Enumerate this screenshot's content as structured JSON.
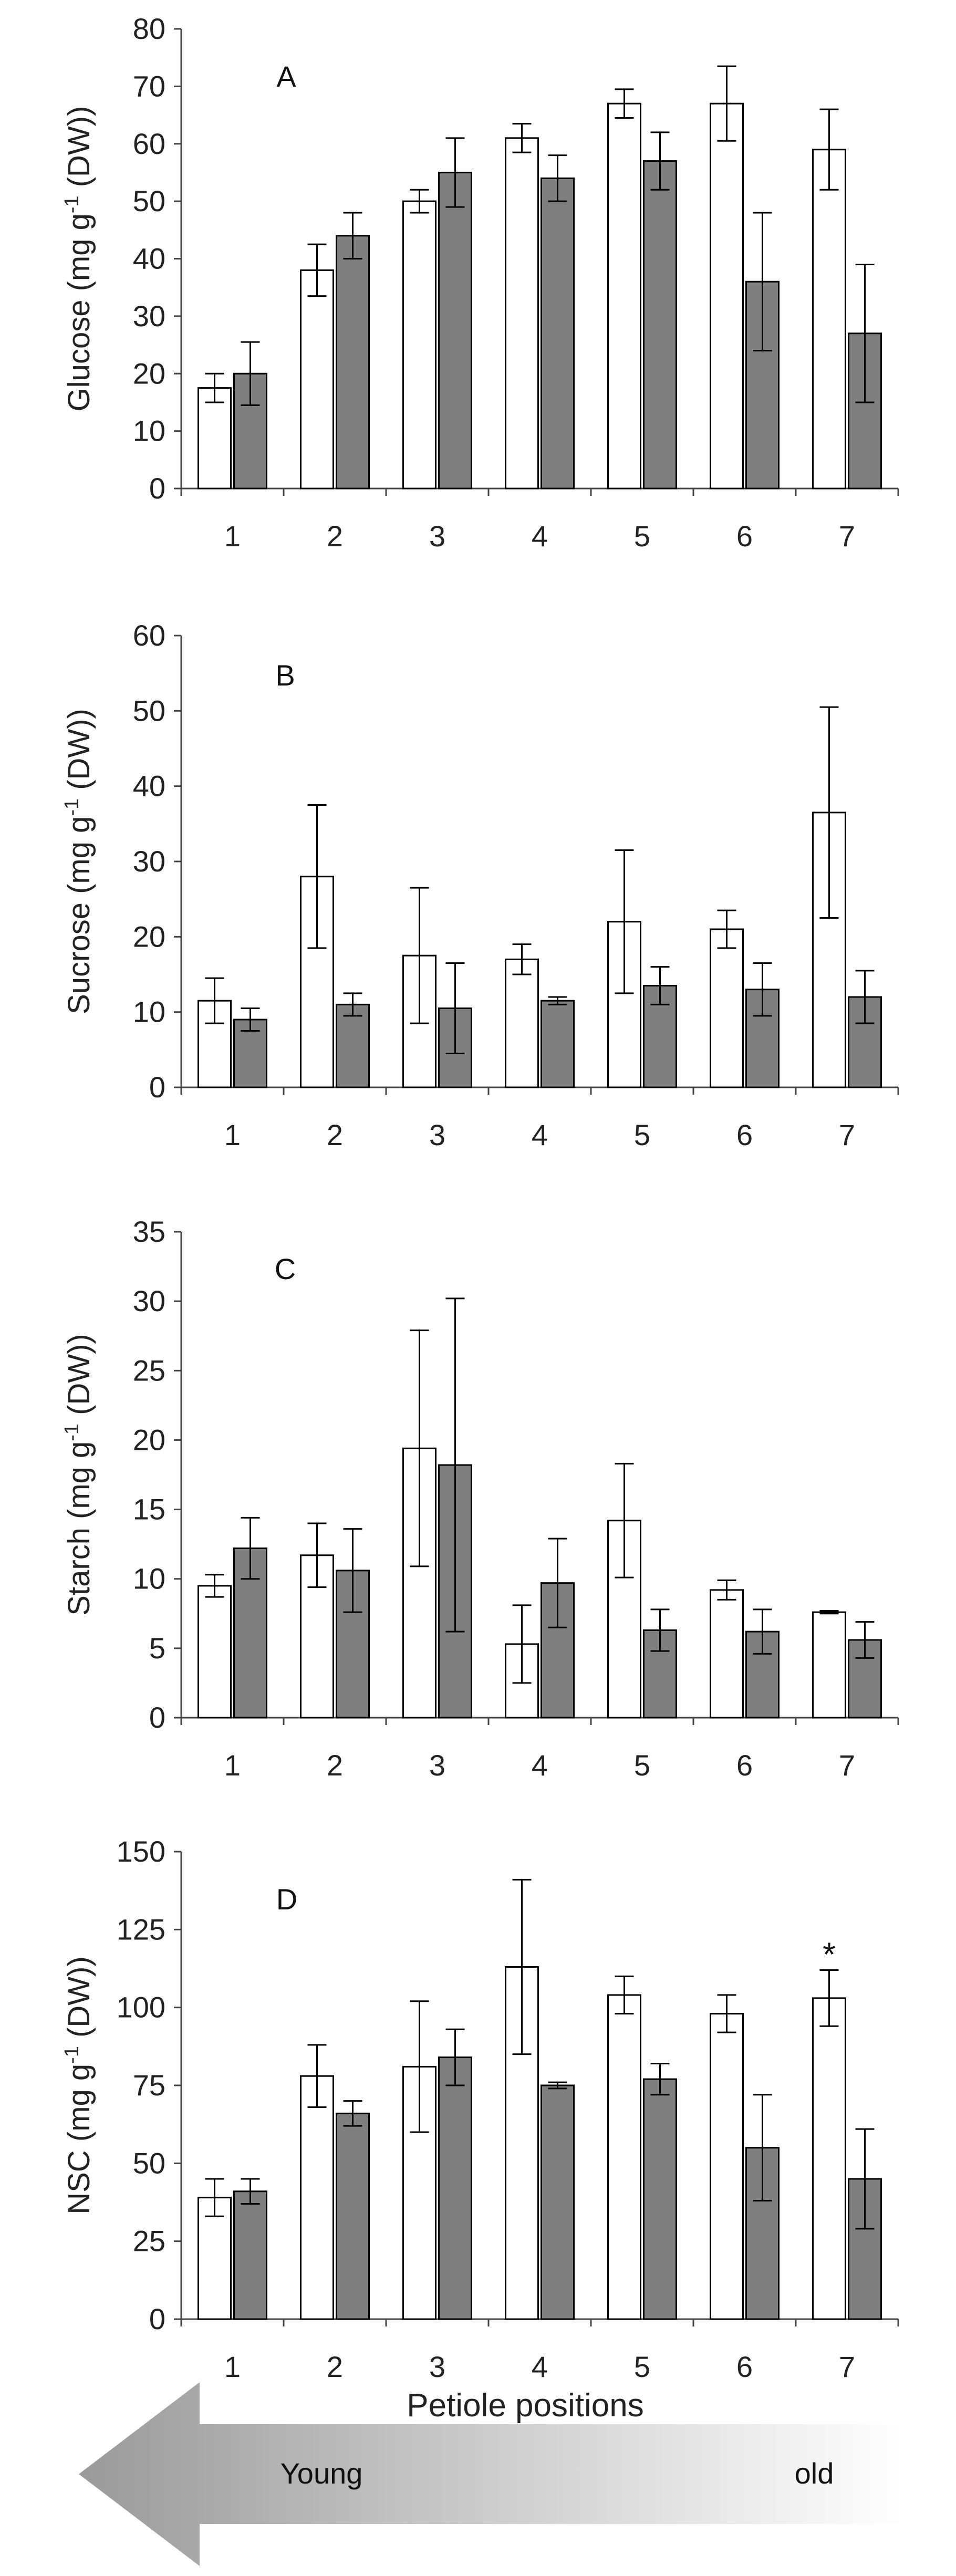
{
  "colors": {
    "series_1_fill": "#ffffff",
    "series_2_fill": "#7f7f7f",
    "stroke": "#000000",
    "axis": "#444444",
    "arrow_start": "#9a9a9a",
    "arrow_end": "#ffffff"
  },
  "chart_data": [
    {
      "type": "bar",
      "panel_label": "A",
      "title": "",
      "xlabel": "",
      "ylabel": "Glucose (mg g-1 (DW))",
      "categories": [
        "1",
        "2",
        "3",
        "4",
        "5",
        "6",
        "7"
      ],
      "ylim": [
        0,
        80
      ],
      "yticks": [
        "0",
        "10",
        "20",
        "30",
        "40",
        "50",
        "60",
        "70",
        "80"
      ],
      "grid": false,
      "series": [
        {
          "name": "series 1 (white bars)",
          "values": [
            17.5,
            38,
            50,
            61,
            67,
            67,
            59
          ],
          "errors": [
            2.5,
            4.5,
            2,
            2.5,
            2.5,
            6.5,
            7
          ]
        },
        {
          "name": "series 2 (grey bars)",
          "values": [
            20,
            44,
            55,
            54,
            57,
            36,
            27
          ],
          "errors": [
            5.5,
            4,
            6,
            4,
            5,
            12,
            12
          ]
        }
      ]
    },
    {
      "type": "bar",
      "panel_label": "B",
      "title": "",
      "xlabel": "",
      "ylabel": "Sucrose (mg g-1 (DW))",
      "categories": [
        "1",
        "2",
        "3",
        "4",
        "5",
        "6",
        "7"
      ],
      "ylim": [
        0,
        60
      ],
      "yticks": [
        "0",
        "10",
        "20",
        "30",
        "40",
        "50",
        "60"
      ],
      "grid": false,
      "series": [
        {
          "name": "series 1 (white bars)",
          "values": [
            11.5,
            28,
            17.5,
            17,
            22,
            21,
            36.5
          ],
          "errors": [
            3,
            9.5,
            9,
            2,
            9.5,
            2.5,
            14
          ]
        },
        {
          "name": "series 2 (grey bars)",
          "values": [
            9,
            11,
            10.5,
            11.5,
            13.5,
            13,
            12
          ],
          "errors": [
            1.5,
            1.5,
            6,
            0.5,
            2.5,
            3.5,
            3.5
          ]
        }
      ]
    },
    {
      "type": "bar",
      "panel_label": "C",
      "title": "",
      "xlabel": "",
      "ylabel": "Starch (mg g-1 (DW))",
      "categories": [
        "1",
        "2",
        "3",
        "4",
        "5",
        "6",
        "7"
      ],
      "ylim": [
        0,
        35
      ],
      "yticks": [
        "0",
        "5",
        "10",
        "15",
        "20",
        "25",
        "30",
        "35"
      ],
      "grid": false,
      "series": [
        {
          "name": "series 1 (white bars)",
          "values": [
            9.5,
            11.7,
            19.4,
            5.3,
            14.2,
            9.2,
            7.6
          ],
          "errors": [
            0.8,
            2.3,
            8.5,
            2.8,
            4.1,
            0.7,
            0.1
          ]
        },
        {
          "name": "series 2 (grey bars)",
          "values": [
            12.2,
            10.6,
            18.2,
            9.7,
            6.3,
            6.2,
            5.6
          ],
          "errors": [
            2.2,
            3,
            12,
            3.2,
            1.5,
            1.6,
            1.3
          ]
        }
      ]
    },
    {
      "type": "bar",
      "panel_label": "D",
      "title": "",
      "xlabel": "Petiole positions",
      "ylabel": "NSC (mg g-1 (DW))",
      "categories": [
        "1",
        "2",
        "3",
        "4",
        "5",
        "6",
        "7"
      ],
      "ylim": [
        0,
        150
      ],
      "yticks": [
        "0",
        "25",
        "50",
        "75",
        "100",
        "125",
        "150"
      ],
      "grid": false,
      "annotations": [
        {
          "text": "*",
          "category": "7",
          "series": 0
        }
      ],
      "series": [
        {
          "name": "series 1 (white bars)",
          "values": [
            39,
            78,
            81,
            113,
            104,
            98,
            103
          ],
          "errors": [
            6,
            10,
            21,
            28,
            6,
            6,
            9
          ]
        },
        {
          "name": "series 2 (grey bars)",
          "values": [
            41,
            66,
            84,
            75,
            77,
            55,
            45
          ],
          "errors": [
            4,
            4,
            9,
            1,
            5,
            17,
            16
          ]
        }
      ]
    }
  ],
  "arrow": {
    "left_label": "Young",
    "right_label": "old"
  }
}
